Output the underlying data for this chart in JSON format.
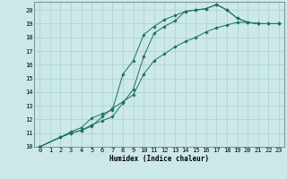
{
  "xlabel": "Humidex (Indice chaleur)",
  "ylabel": "",
  "background_color": "#cce8e8",
  "grid_color": "#aed4d4",
  "line_color": "#1a7060",
  "xlim": [
    -0.5,
    23.5
  ],
  "ylim": [
    10,
    20.6
  ],
  "xticks": [
    0,
    1,
    2,
    3,
    4,
    5,
    6,
    7,
    8,
    9,
    10,
    11,
    12,
    13,
    14,
    15,
    16,
    17,
    18,
    19,
    20,
    21,
    22,
    23
  ],
  "yticks": [
    10,
    11,
    12,
    13,
    14,
    15,
    16,
    17,
    18,
    19,
    20
  ],
  "line1_x": [
    0,
    2,
    3,
    4,
    5,
    6,
    7,
    8,
    9,
    10,
    11,
    12,
    13,
    14,
    15,
    16,
    17,
    18,
    19,
    20,
    21,
    22,
    23
  ],
  "line1_y": [
    10,
    10.7,
    11.0,
    11.2,
    11.5,
    12.2,
    12.8,
    13.3,
    13.8,
    15.3,
    16.3,
    16.8,
    17.3,
    17.7,
    18.0,
    18.4,
    18.7,
    18.9,
    19.1,
    19.1,
    19.0,
    19.0,
    19.0
  ],
  "line2_x": [
    0,
    2,
    3,
    4,
    5,
    6,
    7,
    8,
    9,
    10,
    11,
    12,
    13,
    14,
    15,
    16,
    17,
    18,
    19,
    20,
    21,
    22,
    23
  ],
  "line2_y": [
    10,
    10.7,
    11.0,
    11.2,
    11.6,
    11.9,
    12.2,
    13.2,
    14.2,
    16.6,
    18.3,
    18.8,
    19.2,
    19.9,
    20.0,
    20.1,
    20.4,
    20.0,
    19.4,
    19.1,
    19.0,
    19.0,
    19.0
  ],
  "line3_x": [
    0,
    2,
    3,
    4,
    5,
    6,
    7,
    8,
    9,
    10,
    11,
    12,
    13,
    14,
    15,
    16,
    17,
    18,
    19,
    20,
    21,
    22,
    23
  ],
  "line3_y": [
    10,
    10.7,
    11.1,
    11.4,
    12.1,
    12.4,
    12.7,
    15.3,
    16.3,
    18.2,
    18.8,
    19.3,
    19.6,
    19.9,
    20.0,
    20.1,
    20.4,
    20.0,
    19.4,
    19.1,
    19.0,
    19.0,
    19.0
  ]
}
